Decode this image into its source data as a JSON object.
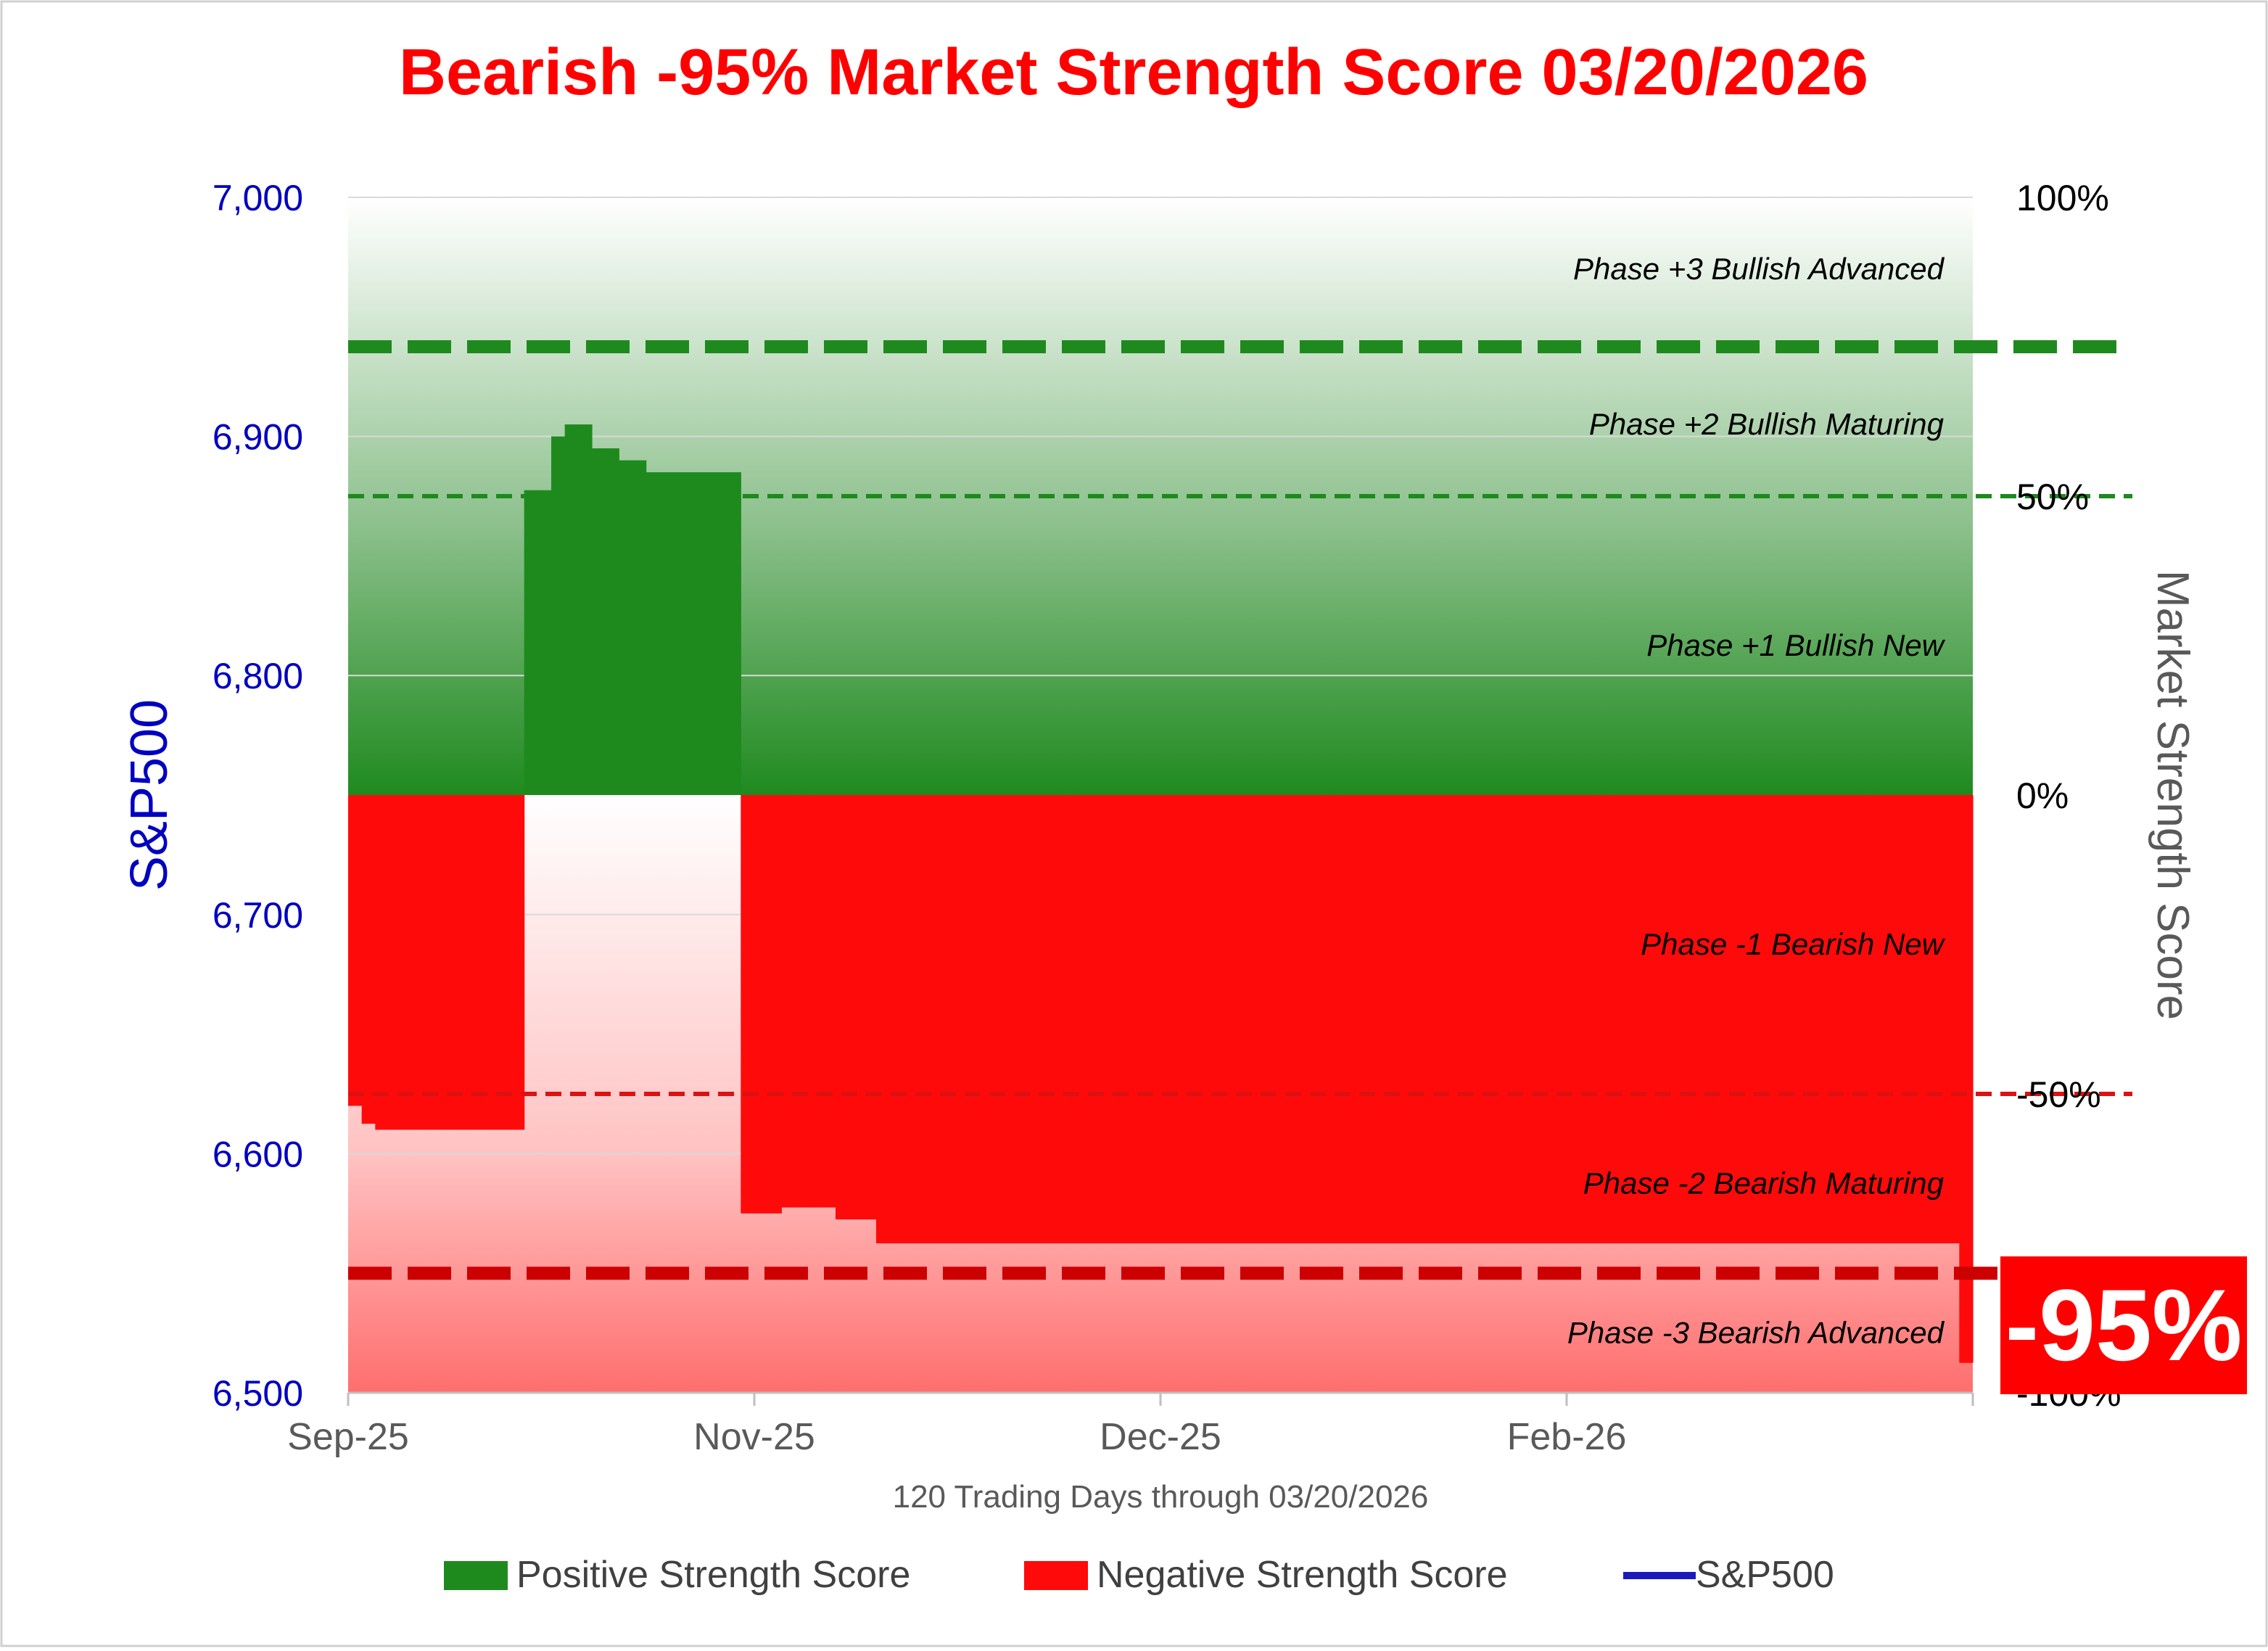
{
  "chart_data": {
    "type": "bar",
    "title": "Bearish -95% Market Strength Score 03/20/2026",
    "xlabel": "120 Trading Days through 03/20/2026",
    "ylabel_left": "S&P500",
    "ylabel_right": "Market Strength Score",
    "x_tick_labels": [
      "Sep-25",
      "Nov-25",
      "Dec-25",
      "Feb-26"
    ],
    "y_left_ticks": [
      "6,500",
      "6,600",
      "6,700",
      "6,800",
      "6,900",
      "7,000"
    ],
    "y_right_ticks": [
      "-100%",
      "-50%",
      "0%",
      "50%",
      "100%"
    ],
    "y_left_range": [
      6500,
      7000
    ],
    "y_right_range": [
      -100,
      100
    ],
    "n_days": 120,
    "current_score_label": "-95%",
    "grid": true,
    "legend_position": "bottom",
    "colors": {
      "title": "#ff0000",
      "positive": "#1e8a1e",
      "negative": "#ff0a0a",
      "sp500": "#1b1bbd",
      "left_axis": "#0000c0",
      "right_axis": "#595959",
      "badge": "#ff0000"
    },
    "phase_labels": [
      {
        "text": "Phase +3 Bullish Advanced",
        "score": 88
      },
      {
        "text": "Phase +2 Bullish Maturing",
        "score": 62
      },
      {
        "text": "Phase +1 Bullish New",
        "score": 25
      },
      {
        "text": "Phase -1 Bearish New",
        "score": -25
      },
      {
        "text": "Phase -2 Bearish Maturing",
        "score": -65
      },
      {
        "text": "Phase -3 Bearish Advanced",
        "score": -90
      }
    ],
    "threshold_lines": [
      {
        "score": 75,
        "color": "#1e8a1e",
        "style": "thick"
      },
      {
        "score": 50,
        "color": "#1e8a1e",
        "style": "thin"
      },
      {
        "score": -50,
        "color": "#dd1111",
        "style": "thin"
      },
      {
        "score": -80,
        "color": "#cc0000",
        "style": "thick"
      }
    ],
    "series": [
      {
        "name": "Positive Strength Score",
        "type": "bar",
        "note": "bars above zero; values = strength score (%)"
      },
      {
        "name": "Negative Strength Score",
        "type": "bar",
        "note": "bars below zero; values = strength score (%)"
      },
      {
        "name": "S&P500",
        "type": "line"
      }
    ],
    "score_values": [
      -52,
      -55,
      -56,
      -56,
      -56,
      -56,
      -56,
      -56,
      -56,
      -56,
      -56,
      -56,
      -56,
      51,
      51,
      60,
      62,
      62,
      58,
      58,
      56,
      56,
      54,
      54,
      54,
      54,
      54,
      54,
      54,
      -70,
      -70,
      -70,
      -69,
      -69,
      -69,
      -69,
      -71,
      -71,
      -71,
      -75,
      -75,
      -75,
      -75,
      -75,
      -75,
      -75,
      -75,
      -75,
      -75,
      -75,
      -75,
      -75,
      -75,
      -75,
      -75,
      -75,
      -75,
      -75,
      -75,
      -75,
      -75,
      -75,
      -75,
      -75,
      -75,
      -75,
      -75,
      -75,
      -75,
      -75,
      -75,
      -75,
      -75,
      -75,
      -75,
      -75,
      -75,
      -75,
      -75,
      -75,
      -75,
      -75,
      -75,
      -75,
      -75,
      -75,
      -75,
      -75,
      -75,
      -75,
      -75,
      -75,
      -75,
      -75,
      -75,
      -75,
      -75,
      -75,
      -75,
      -75,
      -75,
      -75,
      -75,
      -75,
      -75,
      -75,
      -75,
      -75,
      -75,
      -75,
      -75,
      -75,
      -75,
      -75,
      -75,
      -75,
      -75,
      -75,
      -75,
      -95
    ],
    "sp500_values": []
  },
  "legend": {
    "positive_label": "Positive Strength Score",
    "negative_label": "Negative Strength Score",
    "sp500_label": "S&P500"
  }
}
